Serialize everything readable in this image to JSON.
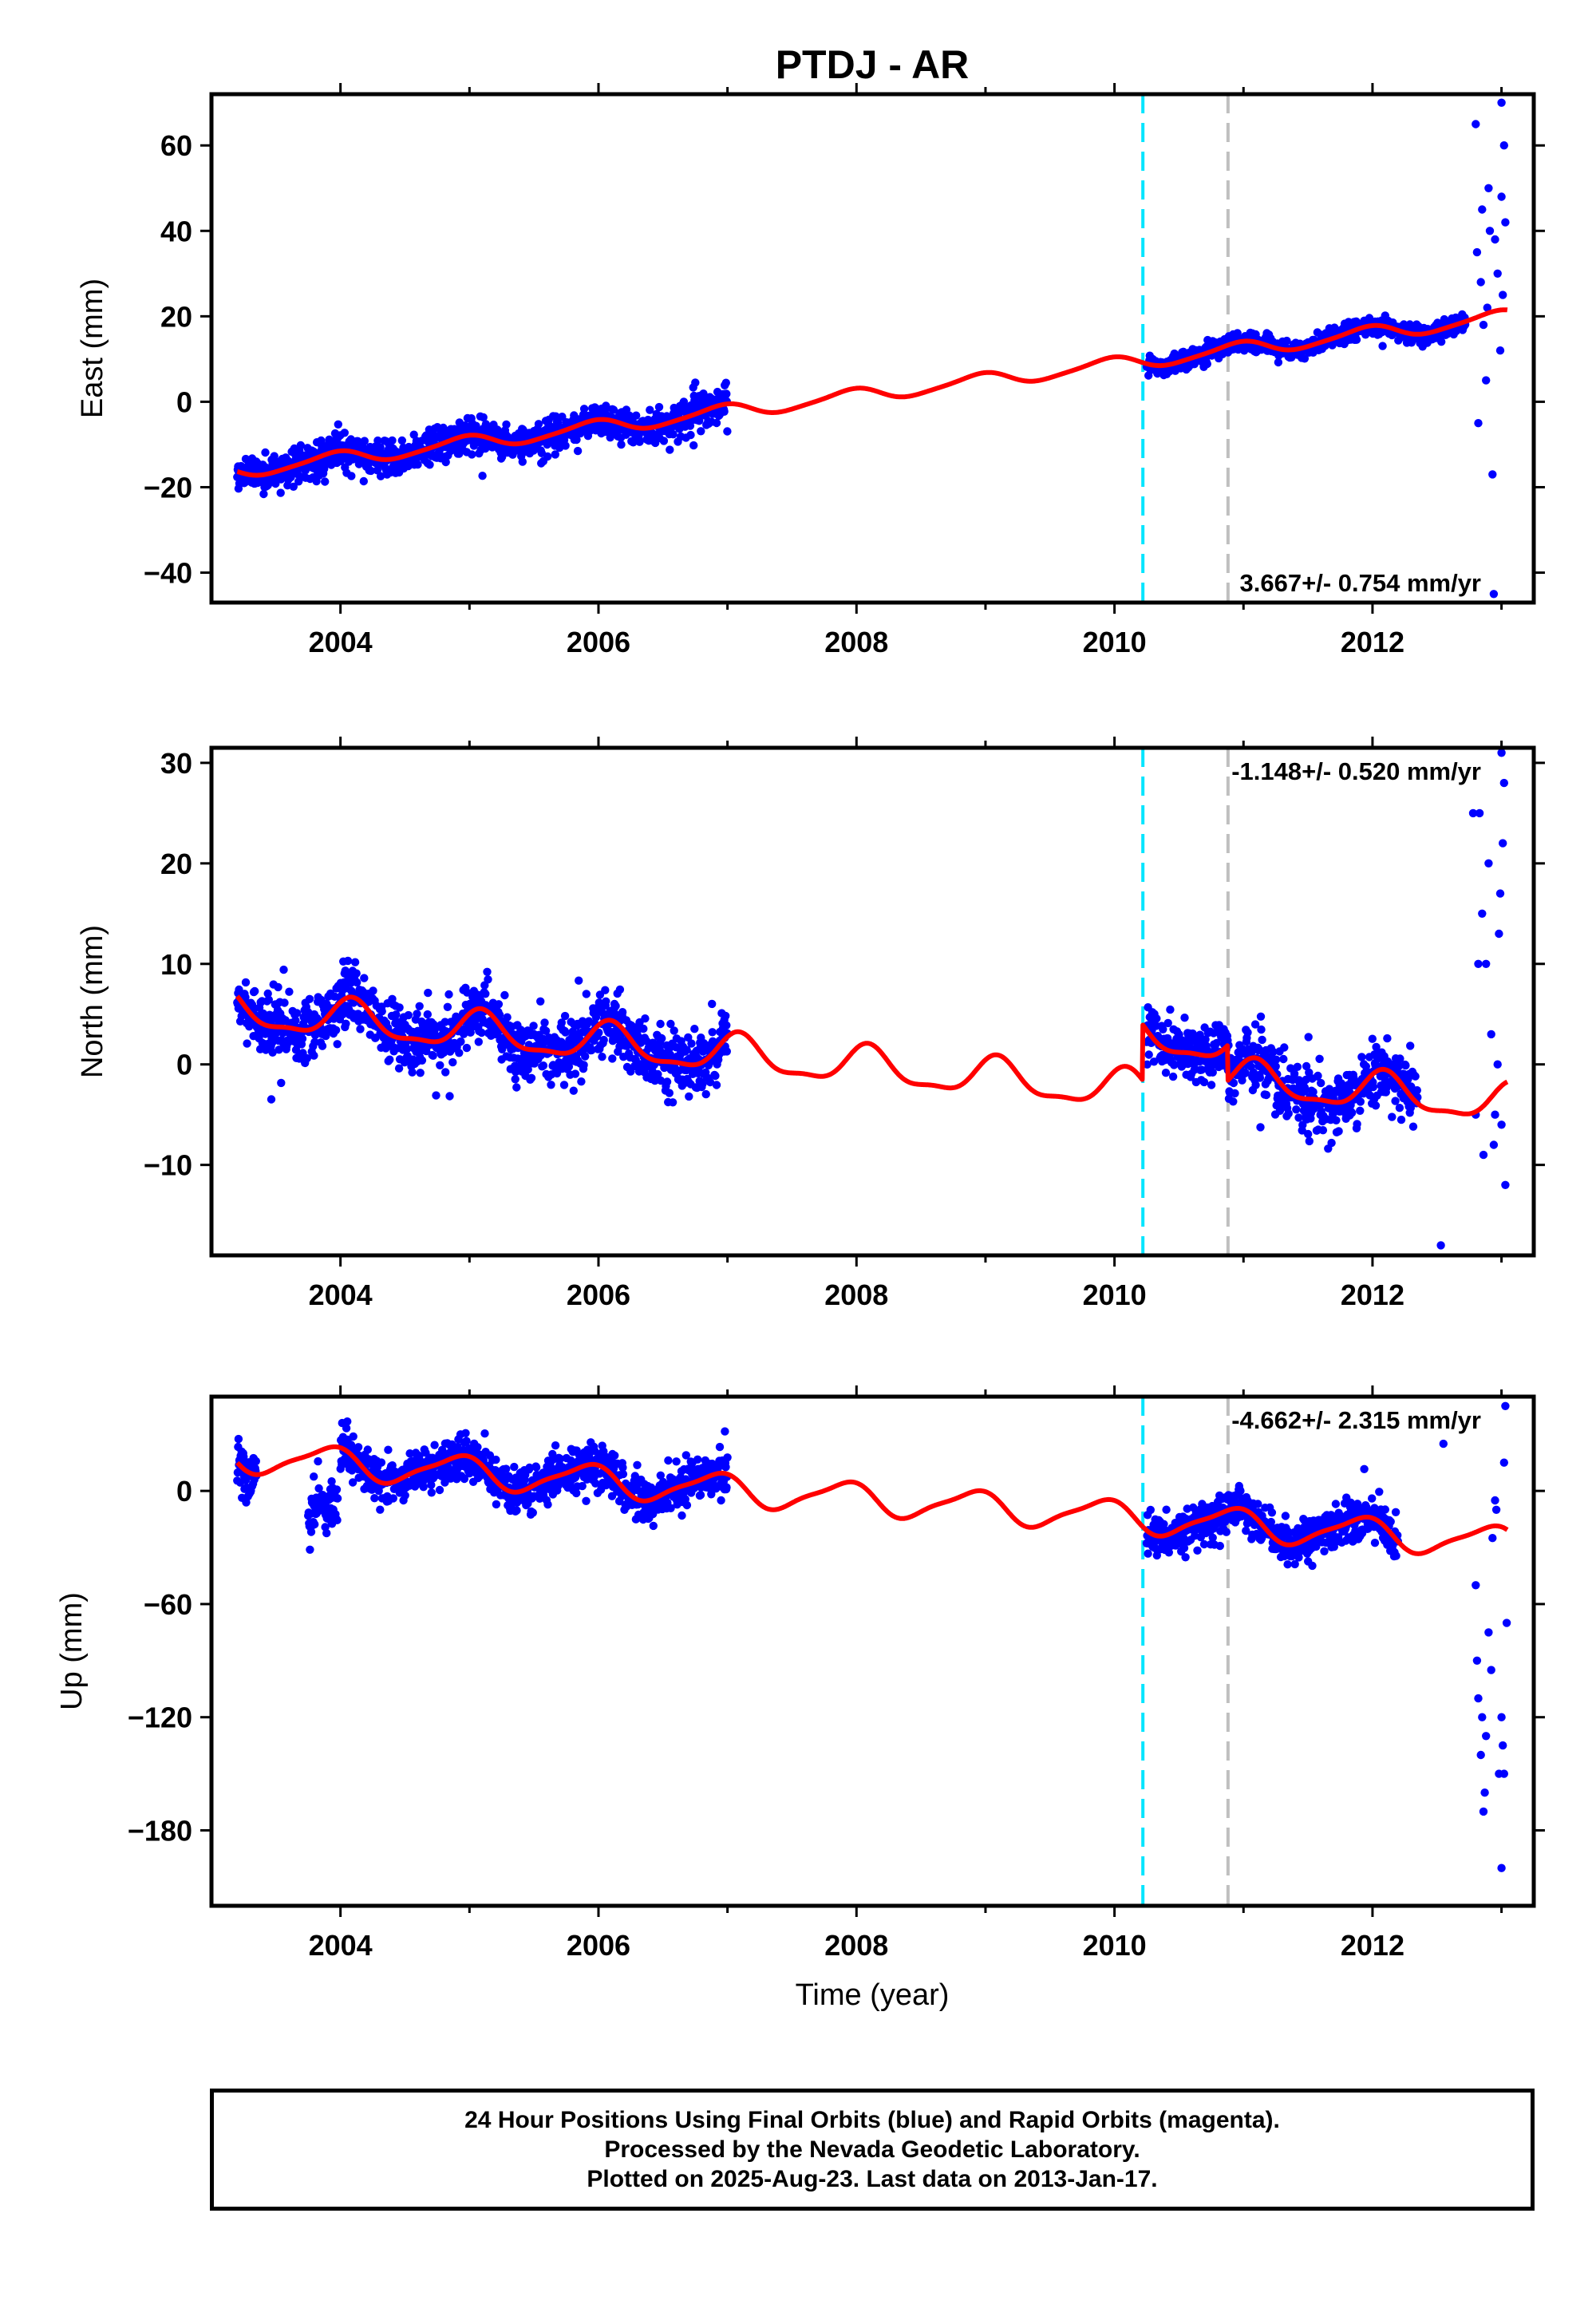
{
  "page": {
    "title": "PTDJ - AR",
    "xlabel": "Time (year)"
  },
  "colors": {
    "points": "#0000ff",
    "model": "#ff0000",
    "line_cyan": "#00e5ff",
    "line_gray": "#bfbfbf",
    "frame": "#000000"
  },
  "vlines": [
    {
      "x": 2010.22,
      "style": "dashed",
      "color_key": "line_cyan"
    },
    {
      "x": 2010.88,
      "style": "dashed",
      "color_key": "line_gray"
    }
  ],
  "chart_data": [
    {
      "type": "scatter",
      "name": "east",
      "ylabel": "East (mm)",
      "xlim": [
        2003.0,
        2013.25
      ],
      "ylim": [
        -47,
        72
      ],
      "xticks": [
        2004,
        2006,
        2008,
        2010,
        2012
      ],
      "xtick_labels": [
        "2004",
        "2006",
        "2008",
        "2010",
        "2012"
      ],
      "yticks": [
        -40,
        -20,
        0,
        20,
        40,
        60
      ],
      "ytick_labels": [
        "−40",
        "−20",
        "0",
        "20",
        "40",
        "60"
      ],
      "rate_label": "3.667+/- 0.754 mm/yr",
      "rate_position": "bottom-right",
      "model": {
        "rate": 3.667,
        "ref": 2008.0,
        "offset": 1.4,
        "annual_amp": 1.6,
        "annual_phase": 1.9,
        "semi_amp": 0.3,
        "steps": []
      },
      "segments": [
        {
          "from": 2003.2,
          "to": 2007.0,
          "noise": 2.0,
          "start": 2003.2
        },
        {
          "from": 2010.25,
          "to": 2012.72,
          "noise": 1.1,
          "start": 2010.25
        }
      ],
      "outlier_segment": {
        "from": 2012.75,
        "to": 2013.05,
        "points": [
          [
            2012.8,
            65
          ],
          [
            2012.85,
            45
          ],
          [
            2012.9,
            50
          ],
          [
            2012.95,
            38
          ],
          [
            2013.0,
            70
          ],
          [
            2013.02,
            60
          ],
          [
            2012.82,
            -5
          ],
          [
            2012.88,
            5
          ],
          [
            2012.93,
            -17
          ],
          [
            2012.97,
            30
          ],
          [
            2013.01,
            25
          ],
          [
            2012.84,
            28
          ],
          [
            2012.91,
            40
          ],
          [
            2012.99,
            12
          ],
          [
            2013.03,
            42
          ],
          [
            2012.86,
            18
          ],
          [
            2012.94,
            -45
          ],
          [
            2013.0,
            48
          ],
          [
            2012.81,
            35
          ],
          [
            2012.89,
            22
          ]
        ]
      }
    },
    {
      "type": "scatter",
      "name": "north",
      "ylabel": "North (mm)",
      "xlim": [
        2003.0,
        2013.25
      ],
      "ylim": [
        -19,
        31.5
      ],
      "xticks": [
        2004,
        2006,
        2008,
        2010,
        2012
      ],
      "xtick_labels": [
        "2004",
        "2006",
        "2008",
        "2010",
        "2012"
      ],
      "yticks": [
        -10,
        0,
        10,
        20,
        30
      ],
      "ytick_labels": [
        "−10",
        "0",
        "10",
        "20",
        "30"
      ],
      "rate_label": "-1.148+/- 0.520 mm/yr",
      "rate_position": "top-right",
      "model": {
        "rate": -1.148,
        "ref": 2008.0,
        "offset": -0.2,
        "annual_amp": 1.8,
        "annual_phase": 1.0,
        "semi_amp": 0.6,
        "steps": [
          [
            2010.22,
            5.5
          ],
          [
            2010.88,
            -3.5
          ]
        ]
      },
      "segments": [
        {
          "from": 2003.2,
          "to": 2007.0,
          "noise": 1.5,
          "start": 2003.2
        },
        {
          "from": 2010.25,
          "to": 2012.35,
          "noise": 1.4,
          "start": 2010.25
        }
      ],
      "outlier_segment": {
        "from": 2012.5,
        "to": 2013.05,
        "points": [
          [
            2012.53,
            -18
          ],
          [
            2012.78,
            25
          ],
          [
            2012.83,
            25
          ],
          [
            2012.85,
            15
          ],
          [
            2012.88,
            10
          ],
          [
            2012.9,
            20
          ],
          [
            2013.0,
            31
          ],
          [
            2013.02,
            28
          ],
          [
            2012.95,
            -5
          ],
          [
            2012.98,
            13
          ],
          [
            2013.01,
            22
          ],
          [
            2013.03,
            -12
          ],
          [
            2012.8,
            -5
          ],
          [
            2012.92,
            3
          ],
          [
            2012.86,
            -9
          ],
          [
            2012.97,
            0
          ],
          [
            2013.0,
            -6
          ],
          [
            2012.82,
            10
          ],
          [
            2012.99,
            17
          ],
          [
            2012.94,
            -8
          ]
        ]
      }
    },
    {
      "type": "scatter",
      "name": "up",
      "ylabel": "Up (mm)",
      "xlim": [
        2003.0,
        2013.25
      ],
      "ylim": [
        -220,
        50
      ],
      "xticks": [
        2004,
        2006,
        2008,
        2010,
        2012
      ],
      "xtick_labels": [
        "2004",
        "2006",
        "2008",
        "2010",
        "2012"
      ],
      "yticks": [
        -180,
        -120,
        -60,
        0
      ],
      "ytick_labels": [
        "−180",
        "−120",
        "−60",
        "0"
      ],
      "rate_label": "-4.662+/- 2.315 mm/yr",
      "rate_position": "top-right",
      "model": {
        "rate": -4.662,
        "ref": 2008.0,
        "offset": -4.0,
        "annual_amp": 8.0,
        "annual_phase": 2.2,
        "semi_amp": 2.0,
        "steps": []
      },
      "segments": [
        {
          "from": 2003.2,
          "to": 2003.35,
          "noise": 7.0,
          "start": 2003.2
        },
        {
          "from": 2003.75,
          "to": 2003.98,
          "noise": 6.0,
          "start": 2003.75,
          "shift": -30
        },
        {
          "from": 2004.0,
          "to": 2007.0,
          "noise": 6.0,
          "start": 2004.0
        },
        {
          "from": 2010.25,
          "to": 2012.2,
          "noise": 5.5,
          "start": 2010.25
        }
      ],
      "outlier_segment": {
        "from": 2012.5,
        "to": 2013.05,
        "points": [
          [
            2012.55,
            25
          ],
          [
            2012.8,
            -50
          ],
          [
            2012.82,
            -110
          ],
          [
            2012.84,
            -140
          ],
          [
            2012.86,
            -170
          ],
          [
            2012.88,
            -130
          ],
          [
            2012.9,
            -75
          ],
          [
            2012.92,
            -95
          ],
          [
            2012.95,
            -5
          ],
          [
            2013.0,
            -120
          ],
          [
            2013.01,
            -135
          ],
          [
            2013.02,
            15
          ],
          [
            2013.03,
            45
          ],
          [
            2013.0,
            -200
          ],
          [
            2012.98,
            -150
          ],
          [
            2013.04,
            -70
          ],
          [
            2012.85,
            -120
          ],
          [
            2012.87,
            -160
          ],
          [
            2012.93,
            -25
          ],
          [
            2012.96,
            -10
          ],
          [
            2013.02,
            -150
          ],
          [
            2012.81,
            -90
          ]
        ]
      }
    }
  ],
  "footer": {
    "line1": "24 Hour Positions Using Final Orbits (blue) and Rapid Orbits (magenta).",
    "line2": "Processed by the Nevada Geodetic Laboratory.",
    "line3": "Plotted on 2025-Aug-23. Last data on 2013-Jan-17."
  }
}
